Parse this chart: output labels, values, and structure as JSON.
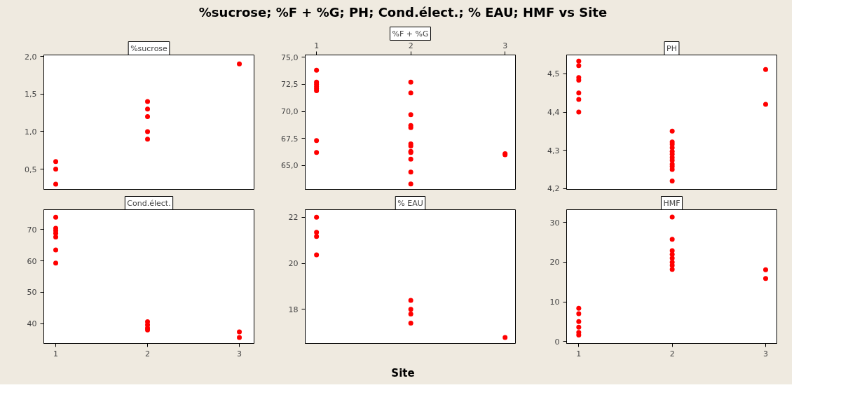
{
  "chart_data": [
    {
      "type": "scatter",
      "title": "%sucrose",
      "annotations": [
        "%sucrose; %F + %G; PH; Cond.élect.; % EAU; HMF vs Site"
      ],
      "marker": "circle",
      "tick_labels": "y",
      "xlim": [
        0.87,
        3.16
      ],
      "ylim": [
        0.23,
        2.02
      ],
      "yticks": [
        {
          "value": 0.5,
          "label": "0,5"
        },
        {
          "value": 1.0,
          "label": "1,0"
        },
        {
          "value": 1.5,
          "label": "1,5"
        },
        {
          "value": 2.0,
          "label": "2,0"
        }
      ],
      "series": [
        {
          "color": "#ff0000",
          "x": [
            1,
            1,
            1,
            2,
            2,
            2,
            2,
            2,
            3
          ],
          "values": [
            0.6,
            0.5,
            0.3,
            1.4,
            1.3,
            1.2,
            1.0,
            0.9,
            1.9
          ]
        }
      ]
    },
    {
      "type": "scatter",
      "title": "%F + %G",
      "marker": "circle",
      "xlim": [
        0.88,
        3.11
      ],
      "xticks": [
        1,
        2,
        3
      ],
      "ylim": [
        62.8,
        75.2
      ],
      "yticks": [
        {
          "value": 65,
          "label": "65,0"
        },
        {
          "value": 67.5,
          "label": "67,5"
        },
        {
          "value": 70,
          "label": "70,0"
        },
        {
          "value": 72.5,
          "label": "72,5"
        },
        {
          "value": 75,
          "label": "75,0"
        }
      ],
      "series": [
        {
          "color": "#ff0000",
          "x": [
            1,
            1,
            1,
            1,
            1,
            1,
            1,
            1,
            2,
            2,
            2,
            2,
            2,
            2,
            2,
            2,
            2,
            2,
            2,
            2,
            3,
            3
          ],
          "values": [
            73.8,
            72.7,
            72.5,
            72.3,
            72.1,
            71.9,
            67.3,
            66.2,
            72.7,
            71.7,
            69.7,
            68.7,
            68.5,
            67.0,
            66.8,
            66.3,
            66.2,
            65.6,
            64.4,
            63.3,
            66.0,
            66.1
          ]
        }
      ]
    },
    {
      "type": "scatter",
      "title": "PH",
      "marker": "circle",
      "tick_labels": "y",
      "xlim": [
        0.87,
        3.12
      ],
      "ylim": [
        4.198,
        4.549
      ],
      "yticks": [
        {
          "value": 4.2,
          "label": "4,2"
        },
        {
          "value": 4.3,
          "label": "4,3"
        },
        {
          "value": 4.4,
          "label": "4,4"
        },
        {
          "value": 4.5,
          "label": "4,5"
        }
      ],
      "series": [
        {
          "color": "#ff0000",
          "x": [
            1,
            1,
            1,
            1,
            1,
            1,
            1,
            2,
            2,
            2,
            2,
            2,
            2,
            2,
            2,
            2,
            2,
            2,
            2,
            3,
            3
          ],
          "values": [
            4.533,
            4.521,
            4.49,
            4.483,
            4.45,
            4.433,
            4.4,
            4.35,
            4.322,
            4.316,
            4.307,
            4.297,
            4.29,
            4.281,
            4.274,
            4.264,
            4.258,
            4.25,
            4.22,
            4.511,
            4.42
          ]
        }
      ]
    },
    {
      "type": "scatter",
      "title": "Cond.élect.",
      "marker": "circle",
      "xlim": [
        0.87,
        3.16
      ],
      "xticks": [
        1,
        2,
        3
      ],
      "ylim": [
        33.7,
        76.3
      ],
      "yticks": [
        40,
        50,
        60,
        70
      ],
      "series": [
        {
          "color": "#ff0000",
          "x": [
            1,
            1,
            1,
            1,
            1,
            1,
            1,
            2,
            2,
            2,
            2,
            3,
            3
          ],
          "values": [
            73.9,
            70.4,
            69.6,
            68.8,
            67.6,
            63.5,
            59.3,
            40.6,
            39.6,
            38.6,
            38.0,
            37.4,
            35.6
          ]
        }
      ]
    },
    {
      "type": "scatter",
      "title": "% EAU",
      "xlabel": "Site",
      "marker": "circle",
      "tick_labels": "y",
      "xlim": [
        0.88,
        3.11
      ],
      "ylim": [
        16.52,
        22.33
      ],
      "yticks": [
        18,
        20,
        22
      ],
      "series": [
        {
          "color": "#ff0000",
          "x": [
            1,
            1,
            1,
            1,
            2,
            2,
            2,
            2,
            3
          ],
          "values": [
            22.0,
            21.35,
            21.17,
            20.37,
            18.39,
            18.0,
            17.8,
            17.4,
            16.78
          ]
        }
      ]
    },
    {
      "type": "scatter",
      "title": "HMF",
      "marker": "circle",
      "xlim": [
        0.87,
        3.12
      ],
      "xticks": [
        1,
        2,
        3
      ],
      "ylim": [
        -0.5,
        33.25
      ],
      "yticks": [
        0,
        10,
        20,
        30
      ],
      "series": [
        {
          "color": "#ff0000",
          "x": [
            1,
            1,
            1,
            1,
            1,
            1,
            2,
            2,
            2,
            2,
            2,
            2,
            2,
            2,
            3,
            3
          ],
          "values": [
            8.4,
            7.0,
            5.0,
            3.6,
            2.3,
            1.6,
            31.4,
            25.8,
            22.9,
            22.0,
            21.0,
            20.0,
            19.2,
            18.2,
            18.1,
            15.9
          ]
        }
      ]
    }
  ]
}
